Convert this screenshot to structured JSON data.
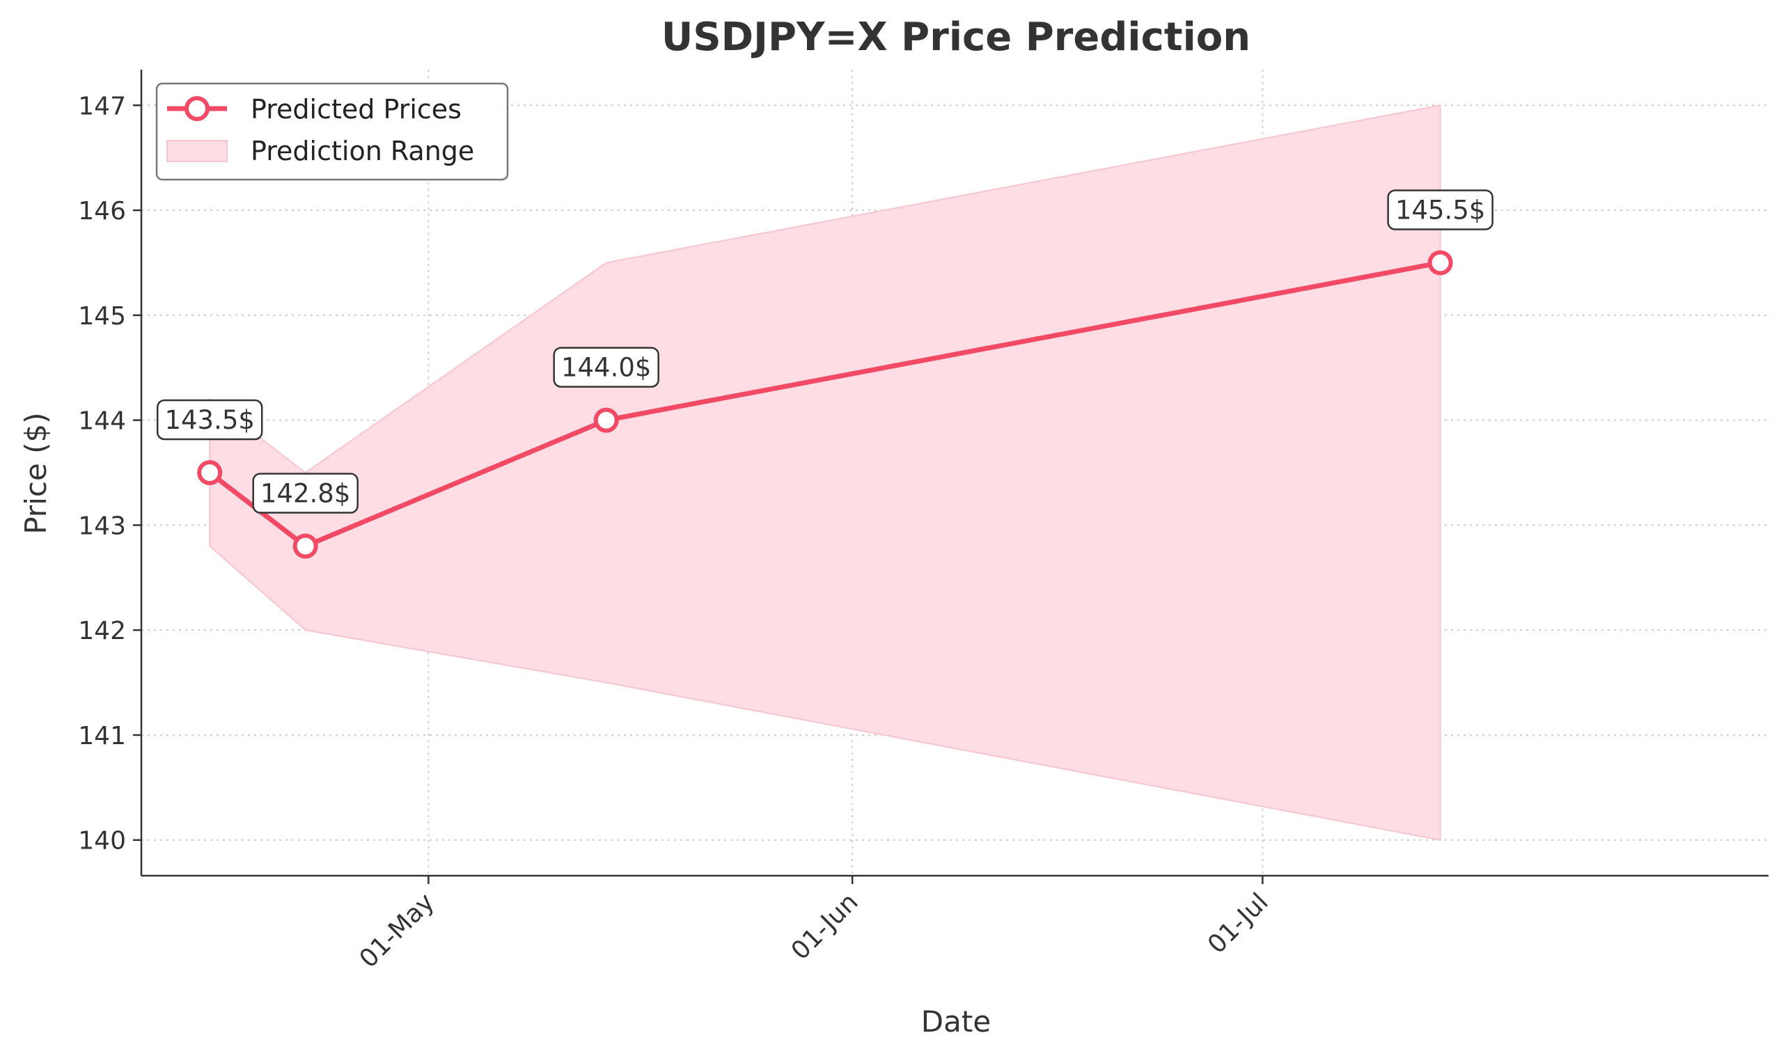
{
  "chart_data": {
    "type": "line",
    "title": "USDJPY=X Price Prediction",
    "xlabel": "Date",
    "ylabel": "Price ($)",
    "x_ticks": [
      {
        "date": "2024-05-01",
        "label": "01-May"
      },
      {
        "date": "2024-06-01",
        "label": "01-Jun"
      },
      {
        "date": "2024-07-01",
        "label": "01-Jul"
      }
    ],
    "y_ticks": [
      140,
      141,
      142,
      143,
      144,
      145,
      146,
      147
    ],
    "xlim": [
      "2024-04-10",
      "2024-08-07"
    ],
    "ylim": [
      139.66,
      147.34
    ],
    "grid": true,
    "legend_position": "top-left",
    "series": [
      {
        "name": "Predicted Prices",
        "kind": "line",
        "color": "#f24a65",
        "points": [
          {
            "x": "2024-04-15",
            "y": 143.5,
            "label": "143.5$"
          },
          {
            "x": "2024-04-22",
            "y": 142.8,
            "label": "142.8$"
          },
          {
            "x": "2024-05-14",
            "y": 144.0,
            "label": "144.0$"
          },
          {
            "x": "2024-07-14",
            "y": 145.5,
            "label": "145.5$"
          }
        ]
      },
      {
        "name": "Prediction Range",
        "kind": "band",
        "color": "#ffdde4",
        "points": [
          {
            "x": "2024-04-15",
            "low": 142.8,
            "high": 144.2
          },
          {
            "x": "2024-04-22",
            "low": 142.0,
            "high": 143.5
          },
          {
            "x": "2024-05-14",
            "low": 141.5,
            "high": 145.5
          },
          {
            "x": "2024-07-14",
            "low": 140.0,
            "high": 147.0
          }
        ]
      }
    ]
  }
}
